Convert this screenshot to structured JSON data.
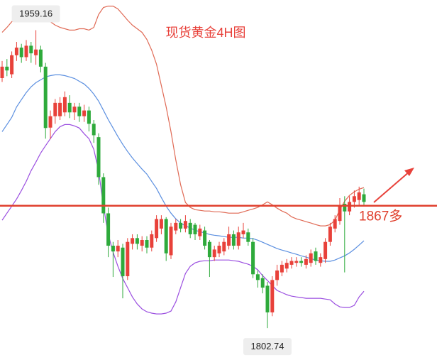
{
  "chart_data": {
    "type": "candlestick",
    "title": "现货黄金4H图",
    "ylim": [
      1786,
      1975
    ],
    "up_color": "#e8413a",
    "down_color": "#2eaa3b",
    "open": [
      1934,
      1940,
      1936,
      1946,
      1950,
      1945,
      1951,
      1946,
      1949,
      1940,
      1908,
      1914,
      1914,
      1916,
      1921,
      1916,
      1919,
      1914,
      1917,
      1910,
      1903,
      1882,
      1863,
      1846,
      1843,
      1845,
      1830,
      1847,
      1850,
      1846,
      1849,
      1845,
      1850,
      1855,
      1860,
      1841,
      1854,
      1858,
      1855,
      1858,
      1857,
      1851,
      1854,
      1848,
      1840,
      1842,
      1843,
      1846,
      1852,
      1846,
      1852,
      1853,
      1848,
      1831,
      1829,
      1825,
      1811,
      1828,
      1832,
      1834,
      1836,
      1837,
      1838,
      1836,
      1837,
      1843,
      1837,
      1839,
      1848,
      1855,
      1859,
      1868,
      1864,
      1869,
      1870,
      1873
    ],
    "close": [
      1940,
      1938,
      1946,
      1950,
      1945,
      1951,
      1947,
      1949,
      1940,
      1907.8,
      1914,
      1921,
      1921,
      1924,
      1916,
      1919,
      1914,
      1917,
      1910,
      1904,
      1882,
      1863,
      1846,
      1843,
      1846,
      1830,
      1848,
      1850,
      1847,
      1849,
      1845,
      1852,
      1860,
      1860,
      1842,
      1856,
      1858,
      1855,
      1859,
      1852,
      1852,
      1855,
      1846,
      1840,
      1844,
      1846,
      1848,
      1852,
      1846,
      1853,
      1854,
      1848,
      1831,
      1828,
      1824,
      1811,
      1828,
      1833,
      1836,
      1837,
      1838,
      1838,
      1837,
      1839,
      1842,
      1838,
      1840,
      1848,
      1856,
      1860,
      1867,
      1864,
      1869,
      1872,
      1874,
      1869
    ],
    "high": [
      1943,
      1944,
      1948,
      1953,
      1952,
      1954,
      1953,
      1959.16,
      1951,
      1942,
      1917,
      1923,
      1924,
      1927,
      1925,
      1921,
      1921,
      1920,
      1919,
      1912,
      1905,
      1884,
      1866,
      1848,
      1849,
      1847,
      1850,
      1852,
      1852,
      1851,
      1851,
      1854,
      1862,
      1862,
      1861,
      1858,
      1860,
      1860,
      1862,
      1860,
      1858,
      1857,
      1856,
      1849,
      1846,
      1848,
      1850,
      1856,
      1854,
      1856,
      1858,
      1855,
      1850,
      1833,
      1831,
      1827,
      1830,
      1836,
      1838,
      1839,
      1840,
      1840,
      1840,
      1841,
      1844,
      1845,
      1842,
      1850,
      1858,
      1862,
      1871,
      1872,
      1872,
      1875,
      1877,
      1876
    ],
    "low": [
      1932,
      1935,
      1934,
      1943,
      1942,
      1943,
      1942,
      1941,
      1937,
      1902.2,
      1902,
      1910,
      1912,
      1914,
      1913,
      1912,
      1911,
      1911,
      1906,
      1900,
      1878,
      1858,
      1840,
      1829.6,
      1840,
      1818.4,
      1828,
      1844,
      1844,
      1843,
      1842,
      1843,
      1848,
      1852,
      1838,
      1839,
      1852,
      1853,
      1853,
      1850,
      1849,
      1849,
      1844,
      1829.6,
      1838,
      1840,
      1841,
      1844,
      1844,
      1844,
      1850,
      1846,
      1829,
      1824,
      1821,
      1802.74,
      1809,
      1825,
      1830,
      1832,
      1834,
      1835,
      1835,
      1834,
      1835,
      1836,
      1835,
      1837,
      1846,
      1853,
      1857,
      1832,
      1862,
      1866,
      1867,
      1867
    ],
    "lines": [
      {
        "color": "#e06a55",
        "values": [
          1958.0,
          1960.6,
          1963.6,
          1965.5,
          1966.6,
          1967.4,
          1968.1,
          1968.1,
          1967.4,
          1965.5,
          1963.6,
          1961.8,
          1960.6,
          1959.9,
          1959.2,
          1959.2,
          1959.9,
          1959.9,
          1959.2,
          1960.6,
          1967.4,
          1971.1,
          1971.8,
          1971.8,
          1970.3,
          1967.4,
          1964.4,
          1961.8,
          1959.9,
          1958.0,
          1954.3,
          1948.7,
          1941.3,
          1930.1,
          1918.9,
          1905.9,
          1891.0,
          1878.0,
          1868.7,
          1866.1,
          1864.9,
          1864.6,
          1864.2,
          1864.2,
          1863.8,
          1863.8,
          1863.5,
          1863.1,
          1863.1,
          1863.1,
          1863.8,
          1864.6,
          1865.3,
          1866.1,
          1867.5,
          1869.0,
          1867.5,
          1865.7,
          1864.2,
          1863.1,
          1861.2,
          1860.1,
          1859.4,
          1858.6,
          1857.9,
          1857.1,
          1856.4,
          1856.4,
          1857.1,
          1859.4,
          1864.9,
          1869.3,
          1872.4,
          1874.3,
          1875.7,
          1876.5
        ]
      },
      {
        "color": "#5b8fe0",
        "values": [
          1905.9,
          1909.6,
          1913.4,
          1918.9,
          1922.7,
          1926.4,
          1929.4,
          1931.6,
          1933.1,
          1934.6,
          1935.3,
          1935.7,
          1935.7,
          1935.3,
          1934.6,
          1933.8,
          1932.3,
          1930.9,
          1928.6,
          1925.6,
          1921.9,
          1917.1,
          1912.2,
          1907.8,
          1903.3,
          1899.2,
          1895.5,
          1892.1,
          1889.1,
          1886.2,
          1883.6,
          1879.8,
          1876.1,
          1871.3,
          1866.8,
          1863.1,
          1860.1,
          1857.9,
          1856.4,
          1855.3,
          1854.1,
          1853.4,
          1852.7,
          1851.9,
          1851.5,
          1851.2,
          1850.8,
          1850.4,
          1850.4,
          1850.4,
          1850.0,
          1850.0,
          1849.7,
          1848.9,
          1847.8,
          1846.7,
          1845.6,
          1844.5,
          1843.7,
          1843.0,
          1842.2,
          1841.5,
          1840.7,
          1840.0,
          1839.2,
          1838.5,
          1838.1,
          1837.8,
          1837.8,
          1838.5,
          1839.6,
          1840.7,
          1842.2,
          1844.1,
          1846.3,
          1848.6
        ]
      },
      {
        "color": "#9b4fe0",
        "values": [
          1859.4,
          1863.1,
          1866.8,
          1870.5,
          1875.0,
          1879.8,
          1885.4,
          1889.9,
          1894.7,
          1898.5,
          1902.2,
          1905.9,
          1908.5,
          1909.6,
          1909.6,
          1908.9,
          1907.8,
          1904.8,
          1902.2,
          1896.6,
          1885.4,
          1866.8,
          1851.9,
          1842.6,
          1835.2,
          1828.8,
          1824.0,
          1819.1,
          1815.4,
          1812.8,
          1811.3,
          1810.6,
          1810.2,
          1810.2,
          1810.6,
          1811.7,
          1816.5,
          1824.0,
          1831.4,
          1835.2,
          1837.0,
          1837.8,
          1838.1,
          1838.1,
          1838.5,
          1838.5,
          1838.5,
          1838.5,
          1838.1,
          1837.8,
          1837.0,
          1836.3,
          1835.2,
          1833.3,
          1830.3,
          1827.7,
          1825.1,
          1822.5,
          1821.4,
          1820.3,
          1819.5,
          1819.1,
          1818.8,
          1818.4,
          1818.4,
          1818.4,
          1818.4,
          1818.0,
          1817.6,
          1815.4,
          1813.9,
          1813.6,
          1813.6,
          1814.7,
          1819.1,
          1822.1
        ]
      }
    ],
    "high_label": 1959.16,
    "low_label": 1802.74,
    "level": {
      "value": 1867,
      "label": "1867多",
      "color": "#e0402e"
    }
  }
}
